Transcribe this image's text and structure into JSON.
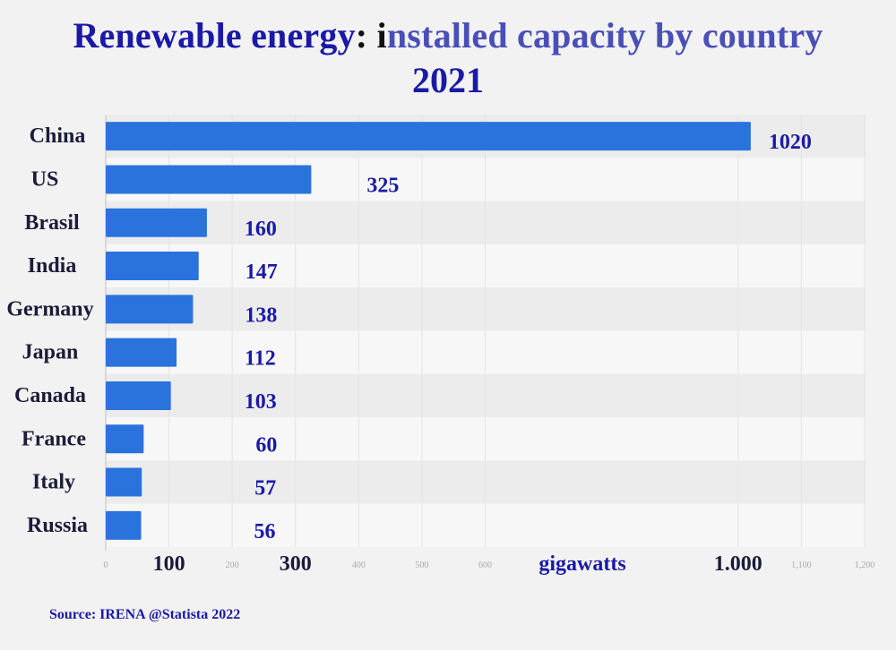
{
  "title": {
    "part1": "Renewable energy",
    "part2": ": i",
    "part3": "nstalled capacity by country",
    "line2": "2021"
  },
  "source": "Source: IRENA @Statista 2022",
  "colors": {
    "bar": "#2a73dd",
    "value_label": "#1a1aa6",
    "category_label": "#1c1c3a",
    "tick_faint": "#aaaaaa",
    "tick_strong": "#1a1a3a",
    "stripe_a": "#ececec",
    "stripe_b": "#f7f7f7"
  },
  "chart_data": {
    "type": "bar",
    "orientation": "horizontal",
    "title": "Renewable energy: installed capacity by country 2021",
    "categories": [
      "China",
      "US",
      "Brasil",
      "India",
      "Germany",
      "Japan",
      "Canada",
      "France",
      "Italy",
      "Russia"
    ],
    "values": [
      1020,
      325,
      160,
      147,
      138,
      112,
      103,
      60,
      57,
      56
    ],
    "value_labels": [
      "1020",
      "325",
      "160",
      "147",
      "138",
      "112",
      "103",
      "60",
      "57",
      "56"
    ],
    "xlabel": "gigawatts",
    "xlim": [
      0,
      1200
    ],
    "x_ticks": [
      {
        "value": 0,
        "label": "0",
        "style": "faint"
      },
      {
        "value": 100,
        "label": "100",
        "style": "strong"
      },
      {
        "value": 200,
        "label": "200",
        "style": "faint"
      },
      {
        "value": 300,
        "label": "300",
        "style": "strong"
      },
      {
        "value": 400,
        "label": "400",
        "style": "faint"
      },
      {
        "value": 500,
        "label": "500",
        "style": "faint"
      },
      {
        "value": 600,
        "label": "600",
        "style": "faint"
      },
      {
        "value": 1000,
        "label": "1.000",
        "style": "strong"
      },
      {
        "value": 1100,
        "label": "1,100",
        "style": "faint"
      },
      {
        "value": 1200,
        "label": "1,200",
        "style": "faint"
      }
    ],
    "grid": true,
    "legend": "none"
  }
}
